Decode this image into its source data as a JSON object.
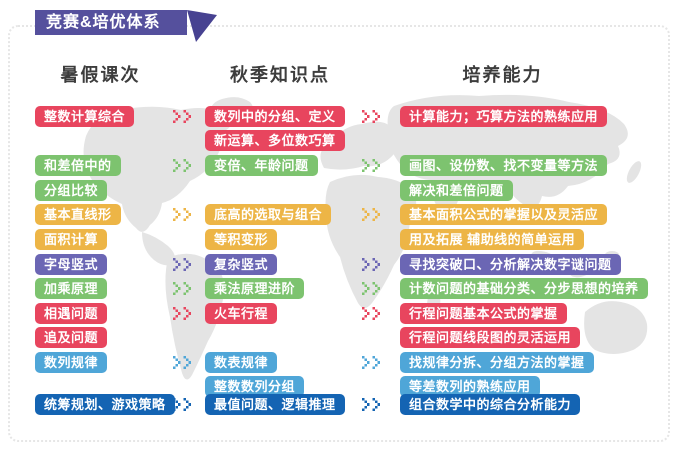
{
  "banner": {
    "title": "竞赛&培优体系"
  },
  "palette": {
    "red": "#e8455e",
    "green": "#7dc36f",
    "yellow": "#edb546",
    "purple": "#6b66b4",
    "lightblue": "#4fa6d8",
    "darkblue": "#1464b3",
    "banner_bg": "#55509d",
    "banner_fold": "#474291",
    "header_text": "#3d3d3d",
    "map_gray": "#e4e4e4",
    "border_gray": "#e6e6e6"
  },
  "columns": [
    {
      "header": "暑假课次",
      "items": [
        {
          "row": 1,
          "label": "整数计算综合",
          "color": "red"
        },
        {
          "row": 3,
          "label": "和差倍中的",
          "color": "green"
        },
        {
          "row": 4,
          "label": "分组比较",
          "color": "green"
        },
        {
          "row": 5,
          "label": "基本直线形",
          "color": "yellow"
        },
        {
          "row": 6,
          "label": "面积计算",
          "color": "yellow"
        },
        {
          "row": 7,
          "label": "字母竖式",
          "color": "purple"
        },
        {
          "row": 8,
          "label": "加乘原理",
          "color": "green"
        },
        {
          "row": 9,
          "label": "相遇问题",
          "color": "red"
        },
        {
          "row": 10,
          "label": "追及问题",
          "color": "red"
        },
        {
          "row": 11,
          "label": "数列规律",
          "color": "lightblue"
        },
        {
          "row": 13,
          "label": "统筹规划、游戏策略",
          "color": "darkblue"
        }
      ]
    },
    {
      "header": "秋季知识点",
      "items": [
        {
          "row": 1,
          "label": "数列中的分组、定义",
          "color": "red"
        },
        {
          "row": 2,
          "label": "新运算、多位数巧算",
          "color": "red"
        },
        {
          "row": 3,
          "label": "变倍、年龄问题",
          "color": "green"
        },
        {
          "row": 5,
          "label": "底高的选取与组合",
          "color": "yellow"
        },
        {
          "row": 6,
          "label": "等积变形",
          "color": "yellow"
        },
        {
          "row": 7,
          "label": "复杂竖式",
          "color": "purple"
        },
        {
          "row": 8,
          "label": "乘法原理进阶",
          "color": "green"
        },
        {
          "row": 9,
          "label": "火车行程",
          "color": "red"
        },
        {
          "row": 11,
          "label": "数表规律",
          "color": "lightblue"
        },
        {
          "row": 12,
          "label": "整数数列分组",
          "color": "lightblue"
        },
        {
          "row": 13,
          "label": "最值问题、逻辑推理",
          "color": "darkblue"
        }
      ]
    },
    {
      "header": "培养能力",
      "items": [
        {
          "row": 1,
          "label": "计算能力；巧算方法的熟练应用",
          "color": "red"
        },
        {
          "row": 3,
          "label": "画图、设份数、找不变量等方法",
          "color": "green"
        },
        {
          "row": 4,
          "label": "解决和差倍问题",
          "color": "green"
        },
        {
          "row": 5,
          "label": "基本面积公式的掌握以及灵活应",
          "color": "yellow"
        },
        {
          "row": 6,
          "label": "用及拓展 辅助线的简单运用",
          "color": "yellow"
        },
        {
          "row": 7,
          "label": "寻找突破口、分析解决数字谜问题",
          "color": "purple"
        },
        {
          "row": 8,
          "label": "计数问题的基础分类、分步思想的培养",
          "color": "green"
        },
        {
          "row": 9,
          "label": "行程问题基本公式的掌握",
          "color": "red"
        },
        {
          "row": 10,
          "label": "行程问题线段图的灵活运用",
          "color": "red"
        },
        {
          "row": 11,
          "label": "找规律分拆、分组方法的掌握",
          "color": "lightblue"
        },
        {
          "row": 12,
          "label": "等差数列的熟练应用",
          "color": "lightblue"
        },
        {
          "row": 13,
          "label": "组合数学中的综合分析能力",
          "color": "darkblue"
        }
      ]
    }
  ],
  "arrows": [
    {
      "between": "summer-autumn",
      "row": 1,
      "color": "red"
    },
    {
      "between": "summer-autumn",
      "row": 3,
      "color": "green"
    },
    {
      "between": "summer-autumn",
      "row": 5,
      "color": "yellow"
    },
    {
      "between": "summer-autumn",
      "row": 7,
      "color": "purple"
    },
    {
      "between": "summer-autumn",
      "row": 8,
      "color": "green"
    },
    {
      "between": "summer-autumn",
      "row": 9,
      "color": "red"
    },
    {
      "between": "summer-autumn",
      "row": 11,
      "color": "lightblue"
    },
    {
      "between": "summer-autumn",
      "row": 13,
      "color": "darkblue"
    },
    {
      "between": "autumn-ability",
      "row": 1,
      "color": "red"
    },
    {
      "between": "autumn-ability",
      "row": 3,
      "color": "green"
    },
    {
      "between": "autumn-ability",
      "row": 5,
      "color": "yellow"
    },
    {
      "between": "autumn-ability",
      "row": 7,
      "color": "purple"
    },
    {
      "between": "autumn-ability",
      "row": 8,
      "color": "green"
    },
    {
      "between": "autumn-ability",
      "row": 9,
      "color": "red"
    },
    {
      "between": "autumn-ability",
      "row": 11,
      "color": "lightblue"
    },
    {
      "between": "autumn-ability",
      "row": 13,
      "color": "darkblue"
    }
  ]
}
